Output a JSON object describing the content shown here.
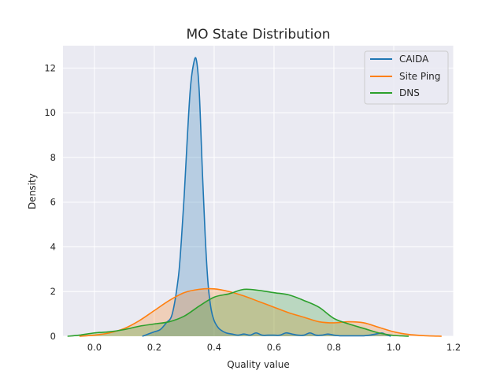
{
  "chart_data": {
    "type": "area",
    "title": "MO State Distribution",
    "xlabel": "Quality value",
    "ylabel": "Density",
    "xlim": [
      -0.105,
      1.2
    ],
    "ylim": [
      0,
      13.0
    ],
    "x_ticks": [
      "0.0",
      "0.2",
      "0.4",
      "0.6",
      "0.8",
      "1.0",
      "1.2"
    ],
    "y_ticks": [
      "0",
      "2",
      "4",
      "6",
      "8",
      "10",
      "12"
    ],
    "grid": true,
    "legend_position": "top-right",
    "series": [
      {
        "name": "CAIDA",
        "color": "#1f77b4",
        "x": [
          0.16,
          0.18,
          0.2,
          0.22,
          0.24,
          0.26,
          0.28,
          0.29,
          0.3,
          0.31,
          0.32,
          0.33,
          0.34,
          0.35,
          0.36,
          0.37,
          0.38,
          0.39,
          0.4,
          0.41,
          0.42,
          0.44,
          0.46,
          0.48,
          0.5,
          0.52,
          0.54,
          0.56,
          0.58,
          0.6,
          0.62,
          0.64,
          0.66,
          0.68,
          0.7,
          0.72,
          0.74,
          0.76,
          0.78,
          0.8,
          0.82,
          0.84,
          0.86,
          0.88,
          0.9,
          0.92,
          0.94,
          0.96,
          0.97,
          0.98,
          0.99
        ],
        "y": [
          0.0,
          0.1,
          0.2,
          0.3,
          0.6,
          1.0,
          2.6,
          4.2,
          6.3,
          8.8,
          11.0,
          12.1,
          12.4,
          11.0,
          7.6,
          4.5,
          2.3,
          1.2,
          0.7,
          0.45,
          0.3,
          0.15,
          0.1,
          0.05,
          0.1,
          0.05,
          0.15,
          0.05,
          0.05,
          0.05,
          0.05,
          0.15,
          0.1,
          0.05,
          0.05,
          0.15,
          0.05,
          0.05,
          0.1,
          0.05,
          0.02,
          0.02,
          0.02,
          0.02,
          0.02,
          0.05,
          0.1,
          0.15,
          0.1,
          0.05,
          0.0
        ]
      },
      {
        "name": "Site Ping",
        "color": "#ff7f0e",
        "x": [
          -0.05,
          0.0,
          0.05,
          0.1,
          0.15,
          0.2,
          0.25,
          0.3,
          0.35,
          0.4,
          0.45,
          0.5,
          0.55,
          0.6,
          0.65,
          0.7,
          0.75,
          0.8,
          0.85,
          0.9,
          0.95,
          1.0,
          1.05,
          1.1,
          1.16
        ],
        "y": [
          0.0,
          0.05,
          0.15,
          0.35,
          0.7,
          1.15,
          1.6,
          1.95,
          2.1,
          2.12,
          2.0,
          1.8,
          1.55,
          1.3,
          1.05,
          0.85,
          0.65,
          0.6,
          0.65,
          0.6,
          0.4,
          0.2,
          0.08,
          0.03,
          0.0
        ]
      },
      {
        "name": "DNS",
        "color": "#2ca02c",
        "x": [
          -0.09,
          -0.05,
          0.0,
          0.05,
          0.1,
          0.15,
          0.2,
          0.25,
          0.3,
          0.35,
          0.4,
          0.45,
          0.5,
          0.55,
          0.6,
          0.65,
          0.7,
          0.75,
          0.8,
          0.85,
          0.9,
          0.95,
          1.0,
          1.05
        ],
        "y": [
          0.0,
          0.05,
          0.15,
          0.2,
          0.3,
          0.45,
          0.55,
          0.65,
          0.9,
          1.35,
          1.75,
          1.9,
          2.1,
          2.05,
          1.95,
          1.85,
          1.6,
          1.3,
          0.8,
          0.55,
          0.35,
          0.15,
          0.04,
          0.0
        ]
      }
    ]
  }
}
